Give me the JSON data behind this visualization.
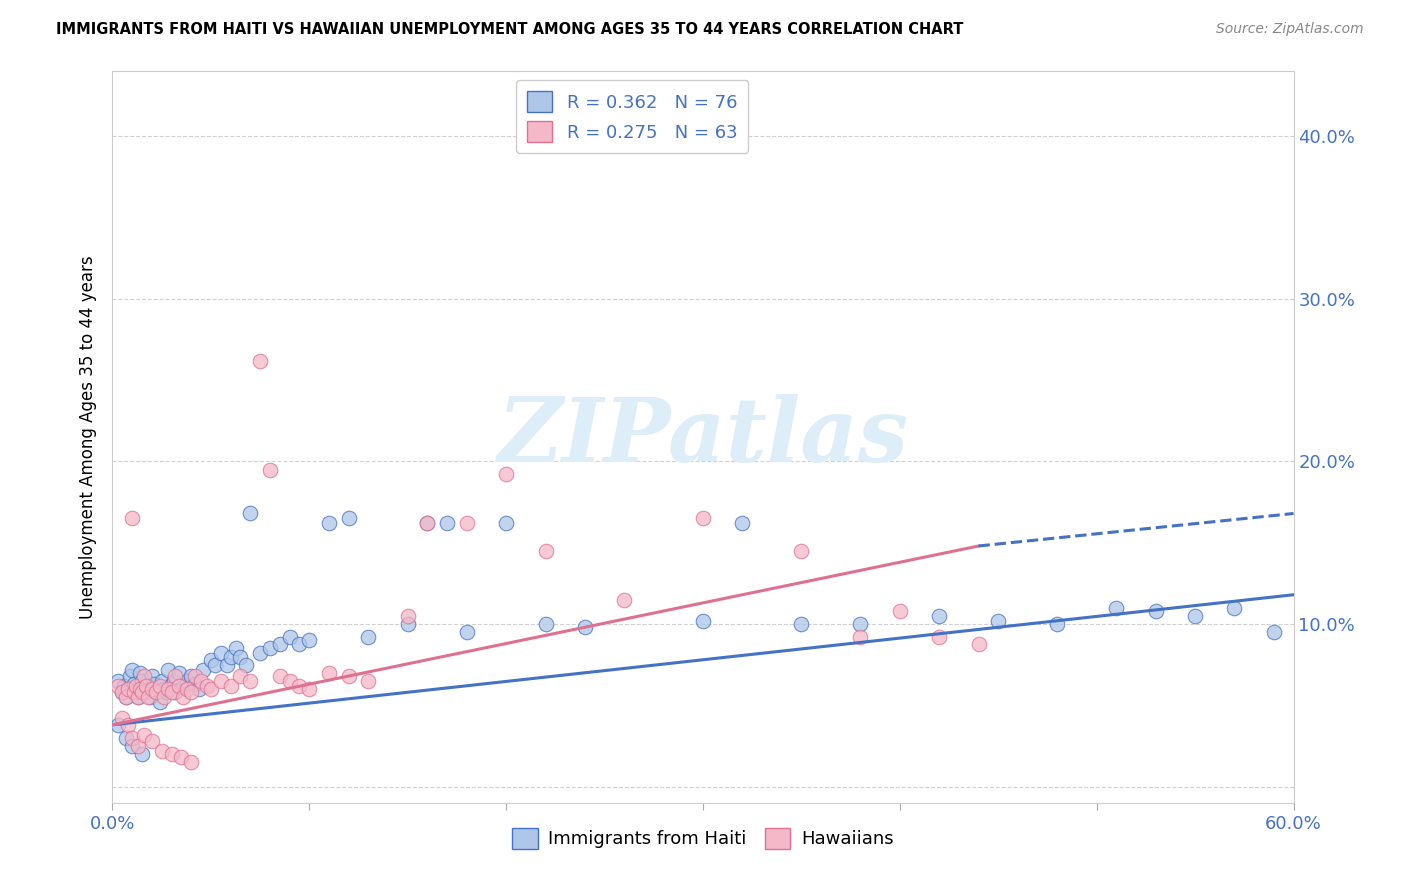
{
  "title": "IMMIGRANTS FROM HAITI VS HAWAIIAN UNEMPLOYMENT AMONG AGES 35 TO 44 YEARS CORRELATION CHART",
  "source": "Source: ZipAtlas.com",
  "ylabel": "Unemployment Among Ages 35 to 44 years",
  "xlim": [
    0.0,
    0.6
  ],
  "ylim": [
    -0.01,
    0.44
  ],
  "ytick_vals": [
    0.0,
    0.1,
    0.2,
    0.3,
    0.4
  ],
  "xtick_vals": [
    0.0,
    0.1,
    0.2,
    0.3,
    0.4,
    0.5,
    0.6
  ],
  "legend_line1": "R = 0.362   N = 76",
  "legend_line2": "R = 0.275   N = 63",
  "color_haiti_fill": "#aec6e8",
  "color_haiti_edge": "#4472c4",
  "color_hawaiian_fill": "#f4b8c8",
  "color_hawaiian_edge": "#e07090",
  "color_blue": "#4472c4",
  "color_pink": "#e07090",
  "color_axis_text": "#4472c4",
  "color_grid": "#cccccc",
  "watermark_text": "ZIPatlas",
  "watermark_color": "#ddeef8",
  "haiti_trend": [
    0.0,
    0.6,
    0.038,
    0.118
  ],
  "hawaiian_trend_solid": [
    0.0,
    0.44,
    0.038,
    0.148
  ],
  "hawaiian_trend_dash": [
    0.44,
    0.6,
    0.148,
    0.168
  ],
  "haiti_x": [
    0.003,
    0.005,
    0.006,
    0.007,
    0.008,
    0.009,
    0.01,
    0.011,
    0.012,
    0.013,
    0.014,
    0.015,
    0.016,
    0.017,
    0.018,
    0.019,
    0.02,
    0.021,
    0.022,
    0.023,
    0.024,
    0.025,
    0.026,
    0.027,
    0.028,
    0.03,
    0.031,
    0.032,
    0.034,
    0.036,
    0.038,
    0.04,
    0.042,
    0.044,
    0.046,
    0.05,
    0.052,
    0.055,
    0.058,
    0.06,
    0.063,
    0.065,
    0.068,
    0.07,
    0.075,
    0.08,
    0.085,
    0.09,
    0.095,
    0.1,
    0.11,
    0.12,
    0.13,
    0.15,
    0.16,
    0.17,
    0.18,
    0.2,
    0.22,
    0.24,
    0.3,
    0.32,
    0.35,
    0.38,
    0.42,
    0.45,
    0.48,
    0.51,
    0.53,
    0.55,
    0.57,
    0.59,
    0.003,
    0.007,
    0.01,
    0.015
  ],
  "haiti_y": [
    0.065,
    0.058,
    0.062,
    0.055,
    0.06,
    0.068,
    0.072,
    0.063,
    0.058,
    0.055,
    0.07,
    0.065,
    0.06,
    0.058,
    0.062,
    0.055,
    0.068,
    0.063,
    0.058,
    0.06,
    0.052,
    0.065,
    0.06,
    0.058,
    0.072,
    0.063,
    0.065,
    0.058,
    0.07,
    0.062,
    0.065,
    0.068,
    0.063,
    0.06,
    0.072,
    0.078,
    0.075,
    0.082,
    0.075,
    0.08,
    0.085,
    0.08,
    0.075,
    0.168,
    0.082,
    0.085,
    0.088,
    0.092,
    0.088,
    0.09,
    0.162,
    0.165,
    0.092,
    0.1,
    0.162,
    0.162,
    0.095,
    0.162,
    0.1,
    0.098,
    0.102,
    0.162,
    0.1,
    0.1,
    0.105,
    0.102,
    0.1,
    0.11,
    0.108,
    0.105,
    0.11,
    0.095,
    0.038,
    0.03,
    0.025,
    0.02
  ],
  "hawaiian_x": [
    0.003,
    0.005,
    0.007,
    0.008,
    0.01,
    0.011,
    0.012,
    0.013,
    0.014,
    0.015,
    0.016,
    0.017,
    0.018,
    0.02,
    0.022,
    0.024,
    0.026,
    0.028,
    0.03,
    0.032,
    0.034,
    0.036,
    0.038,
    0.04,
    0.042,
    0.045,
    0.048,
    0.05,
    0.055,
    0.06,
    0.065,
    0.07,
    0.075,
    0.08,
    0.085,
    0.09,
    0.095,
    0.1,
    0.11,
    0.12,
    0.13,
    0.15,
    0.16,
    0.18,
    0.2,
    0.22,
    0.26,
    0.3,
    0.35,
    0.38,
    0.4,
    0.42,
    0.44,
    0.005,
    0.008,
    0.01,
    0.013,
    0.016,
    0.02,
    0.025,
    0.03,
    0.035,
    0.04
  ],
  "hawaiian_y": [
    0.062,
    0.058,
    0.055,
    0.06,
    0.165,
    0.058,
    0.062,
    0.055,
    0.06,
    0.058,
    0.068,
    0.062,
    0.055,
    0.06,
    0.058,
    0.062,
    0.055,
    0.06,
    0.058,
    0.068,
    0.062,
    0.055,
    0.06,
    0.058,
    0.068,
    0.065,
    0.062,
    0.06,
    0.065,
    0.062,
    0.068,
    0.065,
    0.262,
    0.195,
    0.068,
    0.065,
    0.062,
    0.06,
    0.07,
    0.068,
    0.065,
    0.105,
    0.162,
    0.162,
    0.192,
    0.145,
    0.115,
    0.165,
    0.145,
    0.092,
    0.108,
    0.092,
    0.088,
    0.042,
    0.038,
    0.03,
    0.025,
    0.032,
    0.028,
    0.022,
    0.02,
    0.018,
    0.015
  ]
}
